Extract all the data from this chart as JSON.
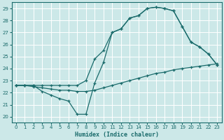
{
  "xlabel": "Humidex (Indice chaleur)",
  "xlim": [
    -0.5,
    23.5
  ],
  "ylim": [
    19.5,
    29.5
  ],
  "xticks": [
    0,
    1,
    2,
    3,
    4,
    5,
    6,
    7,
    8,
    9,
    10,
    11,
    12,
    13,
    14,
    15,
    16,
    17,
    18,
    19,
    20,
    21,
    22,
    23
  ],
  "yticks": [
    20,
    21,
    22,
    23,
    24,
    25,
    26,
    27,
    28,
    29
  ],
  "bg_color": "#cce8e8",
  "line_color": "#1a6b6b",
  "curve_a_x": [
    0,
    1,
    2,
    3,
    4,
    5,
    6,
    7,
    8,
    9,
    10,
    11,
    12,
    13,
    14,
    15,
    16,
    17,
    18,
    19,
    20,
    21,
    22,
    23
  ],
  "curve_a_y": [
    22.6,
    22.6,
    22.6,
    22.1,
    21.8,
    21.5,
    21.3,
    20.2,
    20.2,
    22.8,
    24.5,
    27.0,
    27.3,
    28.2,
    28.4,
    29.0,
    29.1,
    29.0,
    28.8,
    27.5,
    26.2,
    25.8,
    25.2,
    24.3
  ],
  "curve_b_x": [
    0,
    1,
    2,
    3,
    4,
    5,
    6,
    7,
    8,
    9,
    10,
    11,
    12,
    13,
    14,
    15,
    16,
    17,
    18,
    19,
    20,
    21,
    22,
    23
  ],
  "curve_b_y": [
    22.6,
    22.6,
    22.6,
    22.6,
    22.6,
    22.6,
    22.6,
    22.6,
    23.0,
    24.8,
    25.5,
    27.0,
    27.3,
    28.2,
    28.4,
    29.0,
    29.1,
    29.0,
    28.8,
    27.5,
    26.2,
    25.8,
    25.2,
    24.3
  ],
  "curve_c_x": [
    0,
    1,
    2,
    3,
    4,
    5,
    6,
    7,
    8,
    9,
    10,
    11,
    12,
    13,
    14,
    15,
    16,
    17,
    18,
    19,
    20,
    21,
    22,
    23
  ],
  "curve_c_y": [
    22.6,
    22.6,
    22.5,
    22.4,
    22.3,
    22.2,
    22.2,
    22.1,
    22.1,
    22.2,
    22.4,
    22.6,
    22.8,
    23.0,
    23.2,
    23.4,
    23.6,
    23.7,
    23.9,
    24.0,
    24.1,
    24.2,
    24.3,
    24.4
  ]
}
